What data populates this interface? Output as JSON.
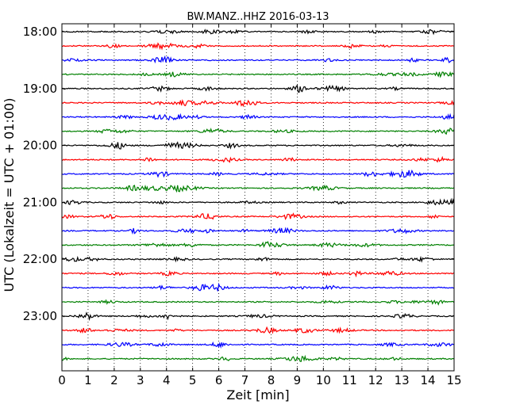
{
  "chart_data": {
    "type": "line",
    "title": "BW.MANZ..HHZ 2016-03-13",
    "xlabel": "Zeit  [min]",
    "ylabel": "UTC (Lokalzeit = UTC + 01:00)",
    "xlim": [
      0,
      15
    ],
    "x_ticks": [
      "0",
      "1",
      "2",
      "3",
      "4",
      "5",
      "6",
      "7",
      "8",
      "9",
      "10",
      "11",
      "12",
      "13",
      "14",
      "15"
    ],
    "y_ticks": [
      "18:00",
      "19:00",
      "20:00",
      "21:00",
      "22:00",
      "23:00"
    ],
    "grid": "vertical dotted at each minute",
    "series_colors": [
      "#000000",
      "#ff0000",
      "#0000ff",
      "#008000"
    ],
    "traces": [
      {
        "start": "18:00",
        "color": "#000000"
      },
      {
        "start": "18:15",
        "color": "#ff0000"
      },
      {
        "start": "18:30",
        "color": "#0000ff"
      },
      {
        "start": "18:45",
        "color": "#008000"
      },
      {
        "start": "19:00",
        "color": "#000000"
      },
      {
        "start": "19:15",
        "color": "#ff0000"
      },
      {
        "start": "19:30",
        "color": "#0000ff"
      },
      {
        "start": "19:45",
        "color": "#008000"
      },
      {
        "start": "20:00",
        "color": "#000000"
      },
      {
        "start": "20:15",
        "color": "#ff0000"
      },
      {
        "start": "20:30",
        "color": "#0000ff"
      },
      {
        "start": "20:45",
        "color": "#008000"
      },
      {
        "start": "21:00",
        "color": "#000000"
      },
      {
        "start": "21:15",
        "color": "#ff0000"
      },
      {
        "start": "21:30",
        "color": "#0000ff"
      },
      {
        "start": "21:45",
        "color": "#008000"
      },
      {
        "start": "22:00",
        "color": "#000000"
      },
      {
        "start": "22:15",
        "color": "#ff0000"
      },
      {
        "start": "22:30",
        "color": "#0000ff"
      },
      {
        "start": "22:45",
        "color": "#008000"
      },
      {
        "start": "23:00",
        "color": "#000000"
      },
      {
        "start": "23:15",
        "color": "#ff0000"
      },
      {
        "start": "23:30",
        "color": "#0000ff"
      },
      {
        "start": "23:45",
        "color": "#008000"
      }
    ]
  }
}
